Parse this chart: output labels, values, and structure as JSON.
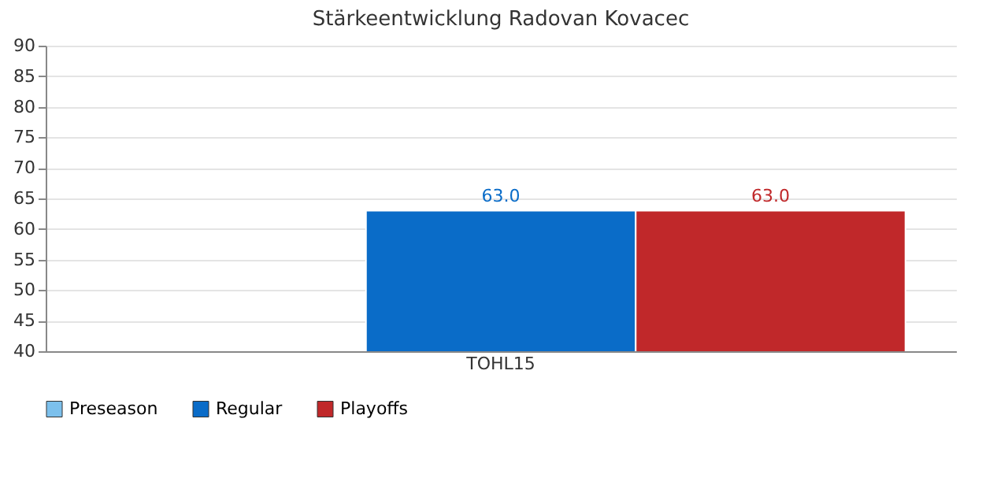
{
  "chart_data": {
    "type": "bar",
    "title": "Stärkeentwicklung Radovan Kovacec",
    "categories": [
      "TOHL15"
    ],
    "series": [
      {
        "name": "Preseason",
        "color": "#7cc0ec",
        "values": [
          null
        ],
        "value_labels": [
          null
        ]
      },
      {
        "name": "Regular",
        "color": "#0a6cc8",
        "values": [
          63.0
        ],
        "value_labels": [
          "63.0"
        ]
      },
      {
        "name": "Playoffs",
        "color": "#c0282a",
        "values": [
          63.0
        ],
        "value_labels": [
          "63.0"
        ]
      }
    ],
    "ylim": [
      40,
      90
    ],
    "yticks": [
      40,
      45,
      50,
      55,
      60,
      65,
      70,
      75,
      80,
      85,
      90
    ],
    "grid": "y",
    "legend": "bottom"
  }
}
